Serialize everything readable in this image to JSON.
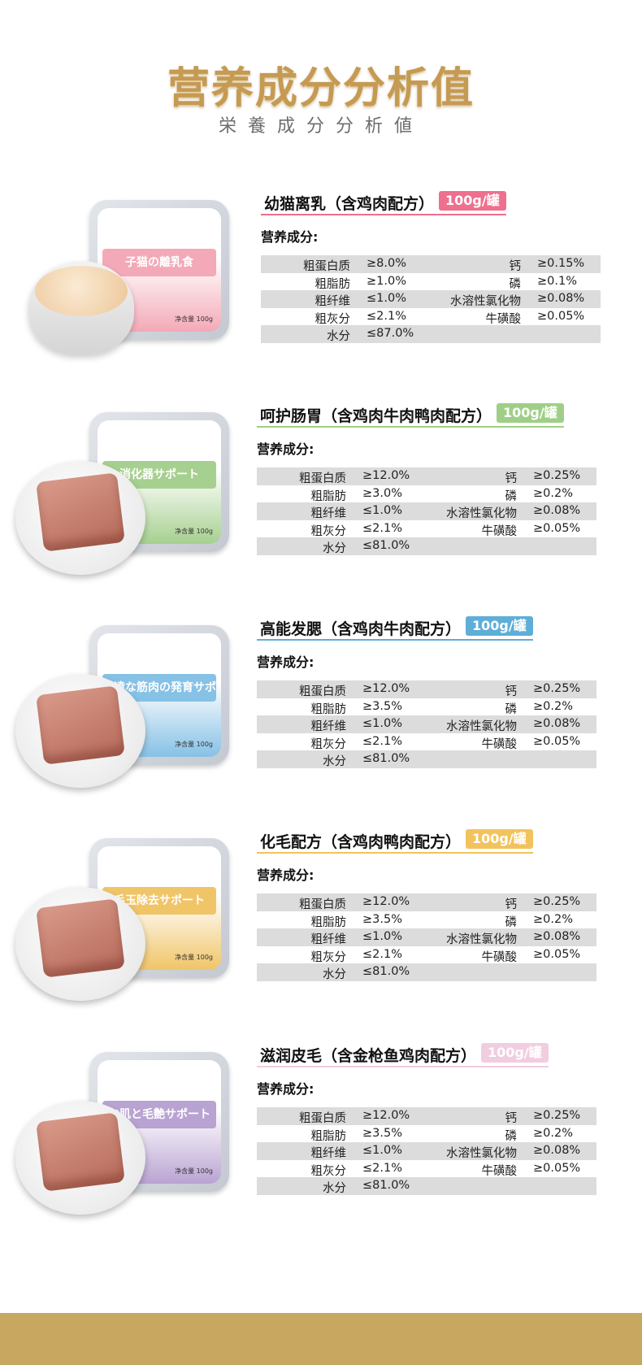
{
  "header": {
    "title": "营养成分分析值",
    "subtitle": "栄養成分分析値"
  },
  "colors": {
    "gold": "#c59a52",
    "footer": "#c8a860"
  },
  "nutrition_label": "营养成分:",
  "products": [
    {
      "name": "幼猫离乳（含鸡肉配方）",
      "badge": "100g/罐",
      "accent": "#ee6f8e",
      "tray_color": "#f3a9b7",
      "tray_text": "子猫の離乳食",
      "food": "mousse",
      "net": "净含量 100g",
      "rows": [
        [
          "粗蛋白质",
          "≥8.0%",
          "钙",
          "≥0.15%"
        ],
        [
          "粗脂肪",
          "≥1.0%",
          "磷",
          "≥0.1%"
        ],
        [
          "粗纤维",
          "≤1.0%",
          "水溶性氯化物",
          "≥0.08%"
        ],
        [
          "粗灰分",
          "≤2.1%",
          "牛磺酸",
          "≥0.05%"
        ],
        [
          "水分",
          "≤87.0%",
          "",
          ""
        ]
      ]
    },
    {
      "name": "呵护肠胃（含鸡肉牛肉鸭肉配方）",
      "badge": "100g/罐",
      "accent": "#9fcf86",
      "tray_color": "#a6d08f",
      "tray_text": "消化器サポート",
      "food": "pate",
      "net": "净含量 100g",
      "rows": [
        [
          "粗蛋白质",
          "≥12.0%",
          "钙",
          "≥0.25%"
        ],
        [
          "粗脂肪",
          "≥3.0%",
          "磷",
          "≥0.2%"
        ],
        [
          "粗纤维",
          "≤1.0%",
          "水溶性氯化物",
          "≥0.08%"
        ],
        [
          "粗灰分",
          "≤2.1%",
          "牛磺酸",
          "≥0.05%"
        ],
        [
          "水分",
          "≤81.0%",
          "",
          ""
        ]
      ]
    },
    {
      "name": "高能发腮（含鸡肉牛肉配方）",
      "badge": "100g/罐",
      "accent": "#5eaed8",
      "tray_color": "#86c1e6",
      "tray_text": "発達な筋肉の発育サポート",
      "food": "pate",
      "net": "净含量 100g",
      "rows": [
        [
          "粗蛋白质",
          "≥12.0%",
          "钙",
          "≥0.25%"
        ],
        [
          "粗脂肪",
          "≥3.5%",
          "磷",
          "≥0.2%"
        ],
        [
          "粗纤维",
          "≤1.0%",
          "水溶性氯化物",
          "≥0.08%"
        ],
        [
          "粗灰分",
          "≤2.1%",
          "牛磺酸",
          "≥0.05%"
        ],
        [
          "水分",
          "≤81.0%",
          "",
          ""
        ]
      ]
    },
    {
      "name": "化毛配方（含鸡肉鸭肉配方）",
      "badge": "100g/罐",
      "accent": "#f2c35c",
      "tray_color": "#f0c568",
      "tray_text": "毛玉除去サポート",
      "food": "pate",
      "net": "净含量 100g",
      "rows": [
        [
          "粗蛋白质",
          "≥12.0%",
          "钙",
          "≥0.25%"
        ],
        [
          "粗脂肪",
          "≥3.5%",
          "磷",
          "≥0.2%"
        ],
        [
          "粗纤维",
          "≤1.0%",
          "水溶性氯化物",
          "≥0.08%"
        ],
        [
          "粗灰分",
          "≤2.1%",
          "牛磺酸",
          "≥0.05%"
        ],
        [
          "水分",
          "≤81.0%",
          "",
          ""
        ]
      ]
    },
    {
      "name": "滋润皮毛（含金枪鱼鸡肉配方）",
      "badge": "100g/罐",
      "accent": "#f1cde0",
      "tray_color": "#b9a3d2",
      "tray_text": "お肌と毛艶サポート",
      "food": "pate",
      "net": "净含量 100g",
      "rows": [
        [
          "粗蛋白质",
          "≥12.0%",
          "钙",
          "≥0.25%"
        ],
        [
          "粗脂肪",
          "≥3.5%",
          "磷",
          "≥0.2%"
        ],
        [
          "粗纤维",
          "≤1.0%",
          "水溶性氯化物",
          "≥0.08%"
        ],
        [
          "粗灰分",
          "≤2.1%",
          "牛磺酸",
          "≥0.05%"
        ],
        [
          "水分",
          "≤81.0%",
          "",
          ""
        ]
      ]
    }
  ]
}
